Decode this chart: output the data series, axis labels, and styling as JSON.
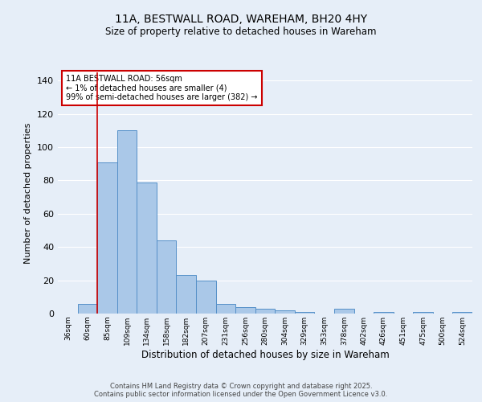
{
  "title_line1": "11A, BESTWALL ROAD, WAREHAM, BH20 4HY",
  "title_line2": "Size of property relative to detached houses in Wareham",
  "xlabel": "Distribution of detached houses by size in Wareham",
  "ylabel": "Number of detached properties",
  "categories": [
    "36sqm",
    "60sqm",
    "85sqm",
    "109sqm",
    "134sqm",
    "158sqm",
    "182sqm",
    "207sqm",
    "231sqm",
    "256sqm",
    "280sqm",
    "304sqm",
    "329sqm",
    "353sqm",
    "378sqm",
    "402sqm",
    "426sqm",
    "451sqm",
    "475sqm",
    "500sqm",
    "524sqm"
  ],
  "values": [
    0,
    6,
    91,
    110,
    79,
    44,
    23,
    20,
    6,
    4,
    3,
    2,
    1,
    0,
    3,
    0,
    1,
    0,
    1,
    0,
    1
  ],
  "bar_color": "#aac8e8",
  "bar_edge_color": "#5590c8",
  "bg_color": "#e6eef8",
  "grid_color": "#ffffff",
  "red_line_x": 1.5,
  "annotation_text": "11A BESTWALL ROAD: 56sqm\n← 1% of detached houses are smaller (4)\n99% of semi-detached houses are larger (382) →",
  "annotation_box_color": "#ffffff",
  "annotation_box_edge": "#cc0000",
  "ylim": [
    0,
    145
  ],
  "yticks": [
    0,
    20,
    40,
    60,
    80,
    100,
    120,
    140
  ],
  "footer_line1": "Contains HM Land Registry data © Crown copyright and database right 2025.",
  "footer_line2": "Contains public sector information licensed under the Open Government Licence v3.0."
}
